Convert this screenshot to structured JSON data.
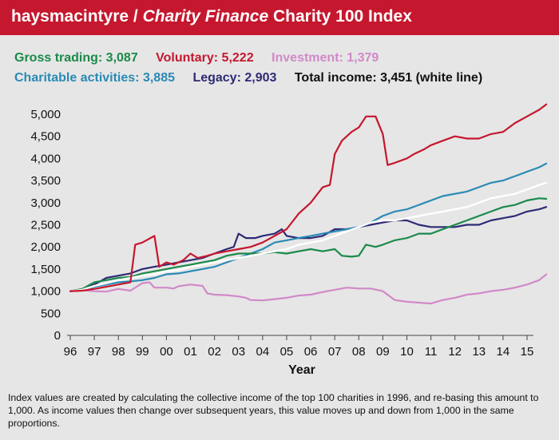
{
  "header": {
    "title_part1": "haysmacintyre / ",
    "title_part2": "Charity Finance",
    "title_part3": " Charity 100 Index"
  },
  "legend": [
    {
      "text": "Gross trading: 3,087",
      "color": "#1a8a4a",
      "series": "gross"
    },
    {
      "text": "Voluntary: 5,222",
      "color": "#c5172e",
      "series": "voluntary"
    },
    {
      "text": "Investment: 1,379",
      "color": "#d189c8",
      "series": "investment"
    },
    {
      "text": "Charitable activities: 3,885",
      "color": "#2a8ab5",
      "series": "charitable"
    },
    {
      "text": "Legacy: 2,903",
      "color": "#2e2a75",
      "series": "legacy"
    },
    {
      "text": "Total income: 3,451 (white line)",
      "color": "#111111",
      "series": "total"
    }
  ],
  "note": "Index values are created by calculating the collective income of the top 100 charities in 1996, and re-basing this amount to 1,000. As income values then change over subsequent years, this value moves up and down from 1,000 in the same proportions.",
  "chart_data": {
    "type": "line",
    "xlabel": "Year",
    "ylabel": "",
    "x_tick_labels": [
      "96",
      "97",
      "98",
      "99",
      "00",
      "01",
      "02",
      "03",
      "04",
      "05",
      "06",
      "07",
      "08",
      "09",
      "10",
      "11",
      "12",
      "13",
      "14",
      "15"
    ],
    "y_ticks": [
      0,
      500,
      1000,
      1500,
      2000,
      2500,
      3000,
      3500,
      4000,
      4500,
      5000
    ],
    "y_tick_labels": [
      "0",
      "500",
      "1,000",
      "1,500",
      "2,000",
      "2,500",
      "3,000",
      "3,500",
      "4,000",
      "4,500",
      "5,000"
    ],
    "ylim": [
      0,
      5000
    ],
    "series": [
      {
        "name": "Investment",
        "key": "investment",
        "color": "#d189c8",
        "width": 2.2,
        "points": [
          [
            0,
            1000
          ],
          [
            0.5,
            1020
          ],
          [
            1,
            1000
          ],
          [
            1.5,
            990
          ],
          [
            2,
            1050
          ],
          [
            2.5,
            1010
          ],
          [
            3,
            1180
          ],
          [
            3.3,
            1200
          ],
          [
            3.5,
            1080
          ],
          [
            4,
            1080
          ],
          [
            4.3,
            1060
          ],
          [
            4.5,
            1110
          ],
          [
            5,
            1150
          ],
          [
            5.5,
            1120
          ],
          [
            5.7,
            950
          ],
          [
            6,
            920
          ],
          [
            6.5,
            910
          ],
          [
            7,
            880
          ],
          [
            7.3,
            850
          ],
          [
            7.5,
            800
          ],
          [
            8,
            790
          ],
          [
            8.5,
            820
          ],
          [
            9,
            850
          ],
          [
            9.5,
            900
          ],
          [
            10,
            920
          ],
          [
            10.5,
            980
          ],
          [
            11,
            1030
          ],
          [
            11.5,
            1080
          ],
          [
            12,
            1060
          ],
          [
            12.5,
            1060
          ],
          [
            13,
            1000
          ],
          [
            13.5,
            800
          ],
          [
            14,
            760
          ],
          [
            14.5,
            740
          ],
          [
            15,
            720
          ],
          [
            15.5,
            800
          ],
          [
            16,
            850
          ],
          [
            16.5,
            920
          ],
          [
            17,
            950
          ],
          [
            17.5,
            1000
          ],
          [
            18,
            1030
          ],
          [
            18.5,
            1080
          ],
          [
            19,
            1150
          ],
          [
            19.5,
            1250
          ],
          [
            19.8,
            1379
          ]
        ]
      },
      {
        "name": "Legacy",
        "key": "legacy",
        "color": "#2e2a75",
        "width": 2.2,
        "points": [
          [
            0,
            1000
          ],
          [
            0.5,
            1040
          ],
          [
            1,
            1150
          ],
          [
            1.5,
            1300
          ],
          [
            2,
            1350
          ],
          [
            2.5,
            1400
          ],
          [
            3,
            1500
          ],
          [
            3.5,
            1550
          ],
          [
            4,
            1600
          ],
          [
            4.5,
            1650
          ],
          [
            5,
            1700
          ],
          [
            5.5,
            1750
          ],
          [
            6,
            1850
          ],
          [
            6.5,
            1950
          ],
          [
            6.8,
            2000
          ],
          [
            7,
            2300
          ],
          [
            7.3,
            2200
          ],
          [
            7.7,
            2200
          ],
          [
            8,
            2250
          ],
          [
            8.5,
            2300
          ],
          [
            8.8,
            2400
          ],
          [
            9,
            2250
          ],
          [
            9.5,
            2200
          ],
          [
            10,
            2200
          ],
          [
            10.5,
            2250
          ],
          [
            11,
            2400
          ],
          [
            11.5,
            2400
          ],
          [
            12,
            2450
          ],
          [
            12.5,
            2500
          ],
          [
            13,
            2550
          ],
          [
            13.5,
            2600
          ],
          [
            14,
            2600
          ],
          [
            14.5,
            2500
          ],
          [
            15,
            2450
          ],
          [
            15.5,
            2450
          ],
          [
            16,
            2450
          ],
          [
            16.5,
            2500
          ],
          [
            17,
            2500
          ],
          [
            17.5,
            2600
          ],
          [
            18,
            2650
          ],
          [
            18.5,
            2700
          ],
          [
            19,
            2800
          ],
          [
            19.5,
            2850
          ],
          [
            19.8,
            2903
          ]
        ]
      },
      {
        "name": "Charitable activities",
        "key": "charitable",
        "color": "#2a8ab5",
        "width": 2.2,
        "points": [
          [
            0,
            1000
          ],
          [
            0.5,
            1020
          ],
          [
            1,
            1100
          ],
          [
            1.5,
            1150
          ],
          [
            2,
            1200
          ],
          [
            2.5,
            1220
          ],
          [
            3,
            1250
          ],
          [
            3.5,
            1300
          ],
          [
            4,
            1380
          ],
          [
            4.5,
            1400
          ],
          [
            5,
            1450
          ],
          [
            5.5,
            1500
          ],
          [
            6,
            1550
          ],
          [
            6.5,
            1650
          ],
          [
            7,
            1750
          ],
          [
            7.5,
            1850
          ],
          [
            8,
            1950
          ],
          [
            8.5,
            2100
          ],
          [
            9,
            2150
          ],
          [
            9.5,
            2200
          ],
          [
            10,
            2250
          ],
          [
            10.5,
            2300
          ],
          [
            11,
            2350
          ],
          [
            11.5,
            2400
          ],
          [
            12,
            2450
          ],
          [
            12.5,
            2550
          ],
          [
            13,
            2700
          ],
          [
            13.5,
            2800
          ],
          [
            14,
            2850
          ],
          [
            14.5,
            2950
          ],
          [
            15,
            3050
          ],
          [
            15.5,
            3150
          ],
          [
            16,
            3200
          ],
          [
            16.5,
            3250
          ],
          [
            17,
            3350
          ],
          [
            17.5,
            3450
          ],
          [
            18,
            3500
          ],
          [
            18.5,
            3600
          ],
          [
            19,
            3700
          ],
          [
            19.5,
            3800
          ],
          [
            19.8,
            3885
          ]
        ]
      },
      {
        "name": "Gross trading",
        "key": "gross",
        "color": "#1a8a4a",
        "width": 2.2,
        "points": [
          [
            0,
            1000
          ],
          [
            0.5,
            1050
          ],
          [
            1,
            1200
          ],
          [
            1.5,
            1250
          ],
          [
            2,
            1300
          ],
          [
            2.5,
            1320
          ],
          [
            3,
            1400
          ],
          [
            3.5,
            1450
          ],
          [
            4,
            1500
          ],
          [
            4.5,
            1550
          ],
          [
            5,
            1600
          ],
          [
            5.5,
            1650
          ],
          [
            6,
            1700
          ],
          [
            6.5,
            1800
          ],
          [
            7,
            1850
          ],
          [
            7.5,
            1850
          ],
          [
            8,
            1850
          ],
          [
            8.5,
            1880
          ],
          [
            9,
            1850
          ],
          [
            9.5,
            1900
          ],
          [
            10,
            1950
          ],
          [
            10.5,
            1900
          ],
          [
            11,
            1950
          ],
          [
            11.3,
            1800
          ],
          [
            11.7,
            1780
          ],
          [
            12,
            1800
          ],
          [
            12.3,
            2050
          ],
          [
            12.7,
            2000
          ],
          [
            13,
            2050
          ],
          [
            13.5,
            2150
          ],
          [
            14,
            2200
          ],
          [
            14.5,
            2300
          ],
          [
            15,
            2300
          ],
          [
            15.5,
            2400
          ],
          [
            16,
            2500
          ],
          [
            16.5,
            2600
          ],
          [
            17,
            2700
          ],
          [
            17.5,
            2800
          ],
          [
            18,
            2900
          ],
          [
            18.5,
            2950
          ],
          [
            19,
            3050
          ],
          [
            19.5,
            3100
          ],
          [
            19.8,
            3087
          ]
        ]
      },
      {
        "name": "Total income",
        "key": "total",
        "color": "#ffffff",
        "width": 2.4,
        "points": [
          [
            0,
            1000
          ],
          [
            0.5,
            1030
          ],
          [
            1,
            1120
          ],
          [
            1.5,
            1180
          ],
          [
            2,
            1250
          ],
          [
            2.5,
            1300
          ],
          [
            3,
            1350
          ],
          [
            3.5,
            1380
          ],
          [
            4,
            1450
          ],
          [
            4.5,
            1480
          ],
          [
            5,
            1550
          ],
          [
            5.5,
            1600
          ],
          [
            6,
            1650
          ],
          [
            6.5,
            1700
          ],
          [
            7,
            1750
          ],
          [
            7.5,
            1800
          ],
          [
            8,
            1850
          ],
          [
            8.5,
            1900
          ],
          [
            9,
            1950
          ],
          [
            9.5,
            2050
          ],
          [
            10,
            2100
          ],
          [
            10.5,
            2150
          ],
          [
            11,
            2250
          ],
          [
            11.5,
            2350
          ],
          [
            12,
            2450
          ],
          [
            12.5,
            2550
          ],
          [
            13,
            2600
          ],
          [
            13.5,
            2600
          ],
          [
            14,
            2650
          ],
          [
            14.5,
            2700
          ],
          [
            15,
            2750
          ],
          [
            15.5,
            2800
          ],
          [
            16,
            2850
          ],
          [
            16.5,
            2900
          ],
          [
            17,
            3000
          ],
          [
            17.5,
            3100
          ],
          [
            18,
            3150
          ],
          [
            18.5,
            3200
          ],
          [
            19,
            3300
          ],
          [
            19.5,
            3400
          ],
          [
            19.8,
            3451
          ]
        ]
      },
      {
        "name": "Voluntary",
        "key": "voluntary",
        "color": "#c5172e",
        "width": 2.2,
        "points": [
          [
            0,
            1000
          ],
          [
            0.5,
            1010
          ],
          [
            1,
            1050
          ],
          [
            1.5,
            1100
          ],
          [
            2,
            1150
          ],
          [
            2.5,
            1200
          ],
          [
            2.7,
            2050
          ],
          [
            3,
            2100
          ],
          [
            3.5,
            2250
          ],
          [
            3.7,
            1550
          ],
          [
            4,
            1650
          ],
          [
            4.3,
            1600
          ],
          [
            4.7,
            1700
          ],
          [
            5,
            1850
          ],
          [
            5.3,
            1750
          ],
          [
            5.7,
            1800
          ],
          [
            6,
            1850
          ],
          [
            6.5,
            1900
          ],
          [
            7,
            1950
          ],
          [
            7.5,
            2000
          ],
          [
            8,
            2100
          ],
          [
            8.5,
            2250
          ],
          [
            9,
            2400
          ],
          [
            9.5,
            2750
          ],
          [
            10,
            3000
          ],
          [
            10.5,
            3350
          ],
          [
            10.8,
            3400
          ],
          [
            11,
            4100
          ],
          [
            11.3,
            4400
          ],
          [
            11.7,
            4600
          ],
          [
            12,
            4700
          ],
          [
            12.3,
            4950
          ],
          [
            12.7,
            4950
          ],
          [
            13,
            4550
          ],
          [
            13.2,
            3850
          ],
          [
            13.5,
            3900
          ],
          [
            14,
            4000
          ],
          [
            14.3,
            4100
          ],
          [
            14.7,
            4200
          ],
          [
            15,
            4300
          ],
          [
            15.5,
            4400
          ],
          [
            16,
            4500
          ],
          [
            16.5,
            4450
          ],
          [
            17,
            4450
          ],
          [
            17.5,
            4550
          ],
          [
            18,
            4600
          ],
          [
            18.5,
            4800
          ],
          [
            19,
            4950
          ],
          [
            19.5,
            5100
          ],
          [
            19.8,
            5222
          ]
        ]
      }
    ],
    "x_range": [
      0,
      19
    ]
  }
}
